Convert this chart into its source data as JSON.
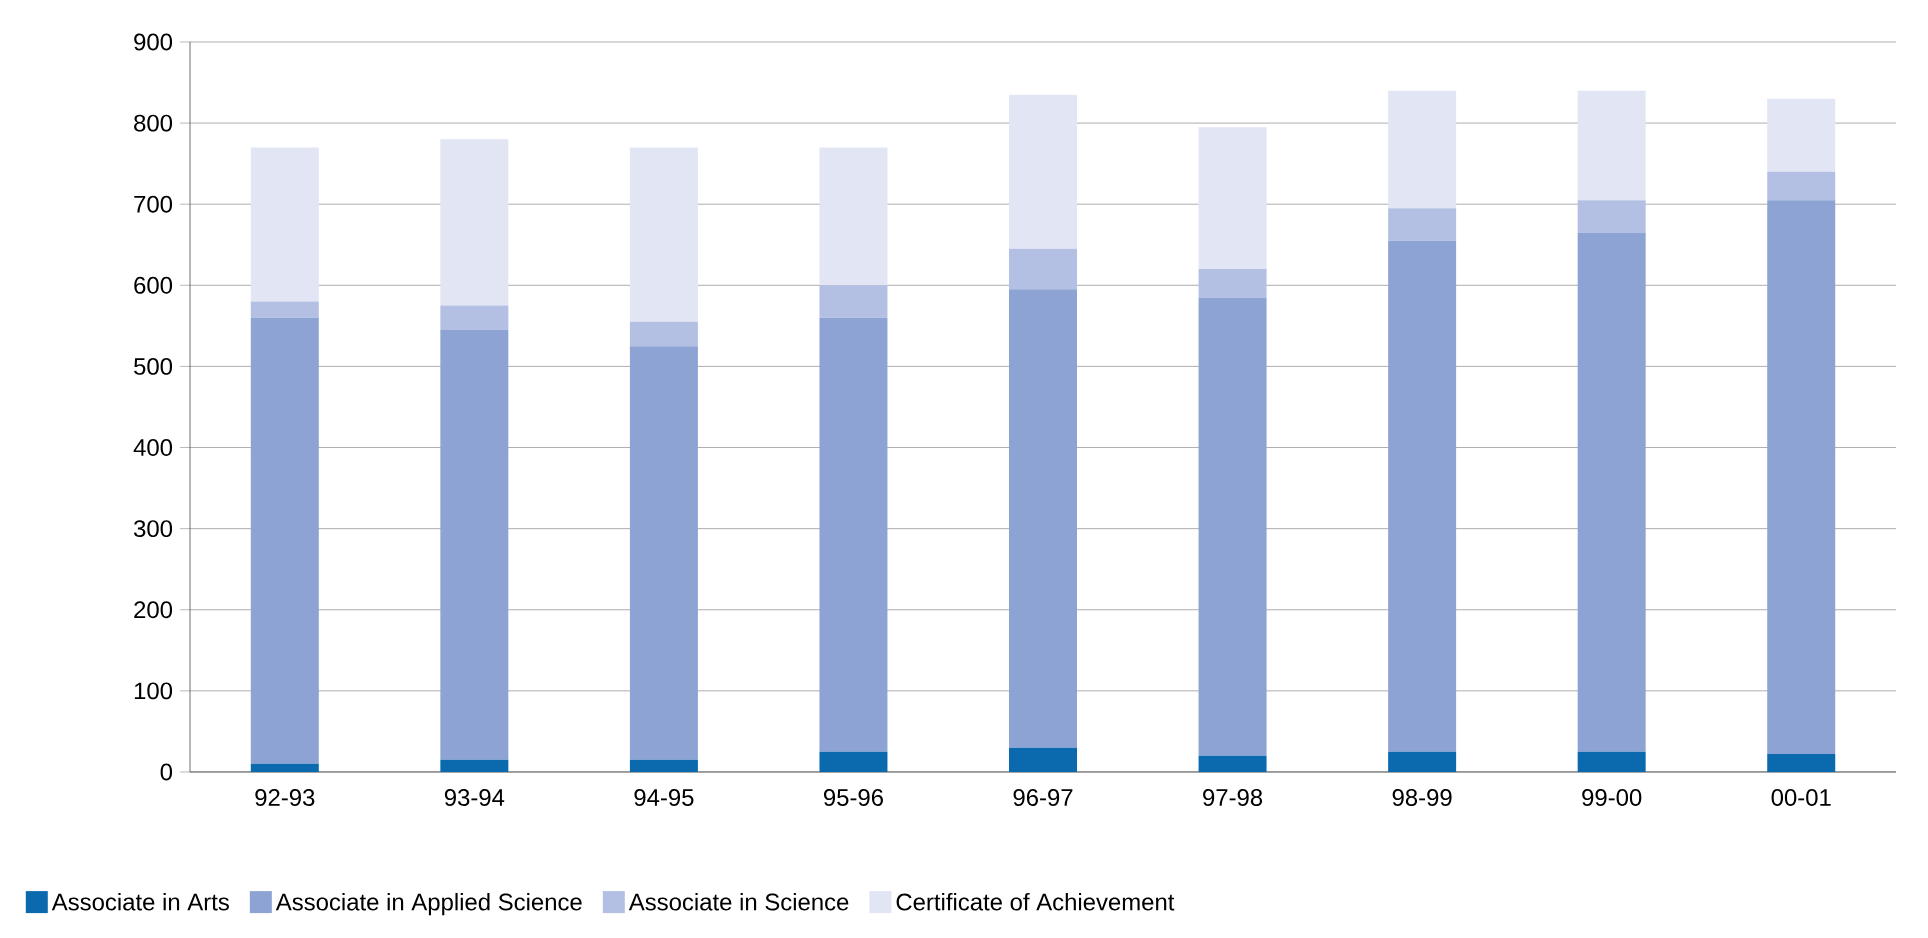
{
  "chart_data": {
    "type": "bar",
    "stacked": true,
    "categories": [
      "92-93",
      "93-94",
      "94-95",
      "95-96",
      "96-97",
      "97-98",
      "98-99",
      "99-00",
      "00-01"
    ],
    "series": [
      {
        "name": "Associate in Arts",
        "color": "#0a6aad",
        "values": [
          10,
          15,
          15,
          25,
          30,
          20,
          25,
          25,
          22
        ]
      },
      {
        "name": "Associate in Applied Science",
        "color": "#8da3d4",
        "values": [
          550,
          530,
          510,
          535,
          565,
          565,
          630,
          640,
          683
        ]
      },
      {
        "name": "Associate in Science",
        "color": "#b3c0e3",
        "values": [
          20,
          30,
          30,
          40,
          50,
          35,
          40,
          40,
          35
        ]
      },
      {
        "name": "Certificate of Achievement",
        "color": "#e1e5f4",
        "values": [
          190,
          205,
          215,
          170,
          190,
          175,
          145,
          135,
          90
        ]
      }
    ],
    "ylim": [
      0,
      900
    ],
    "yticks": [
      0,
      100,
      200,
      300,
      400,
      500,
      600,
      700,
      800,
      900
    ],
    "grid": "y",
    "legend": "bottom"
  }
}
